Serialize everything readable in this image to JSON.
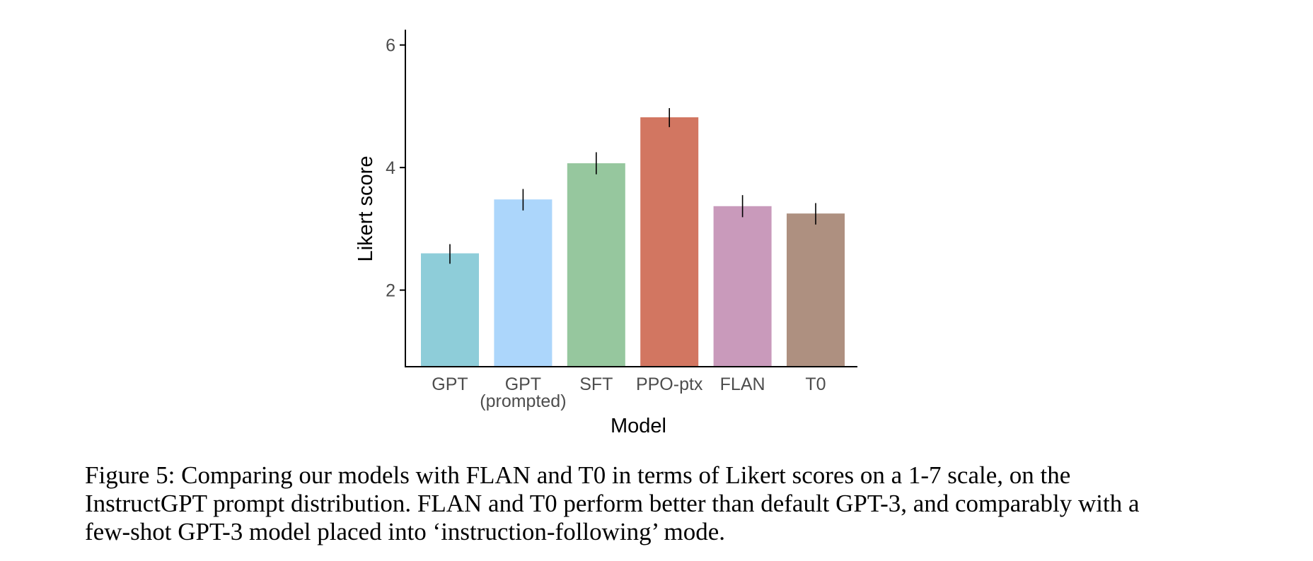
{
  "chart_data": {
    "type": "bar",
    "categories": [
      "GPT",
      "GPT\n(prompted)",
      "SFT",
      "PPO-ptx",
      "FLAN",
      "T0"
    ],
    "values": [
      2.6,
      3.48,
      4.07,
      4.82,
      3.37,
      3.25
    ],
    "error_low": [
      2.43,
      3.3,
      3.89,
      4.66,
      3.19,
      3.07
    ],
    "error_high": [
      2.75,
      3.65,
      4.25,
      4.97,
      3.55,
      3.42
    ],
    "colors": [
      "#8ECDD9",
      "#ACD6FB",
      "#96C79E",
      "#D27661",
      "#C99ABB",
      "#AE9080"
    ],
    "title": "",
    "xlabel": "Model",
    "ylabel": "Likert score",
    "ylim": [
      0.75,
      6.25
    ],
    "yticks": [
      2,
      4,
      6
    ],
    "grid": false,
    "legend": "none"
  },
  "caption": "Figure 5: Comparing our models with FLAN and T0 in terms of Likert scores on a 1-7 scale, on the InstructGPT prompt distribution. FLAN and T0 perform better than default GPT-3, and comparably with a few-shot GPT-3 model placed into ‘instruction-following’ mode."
}
